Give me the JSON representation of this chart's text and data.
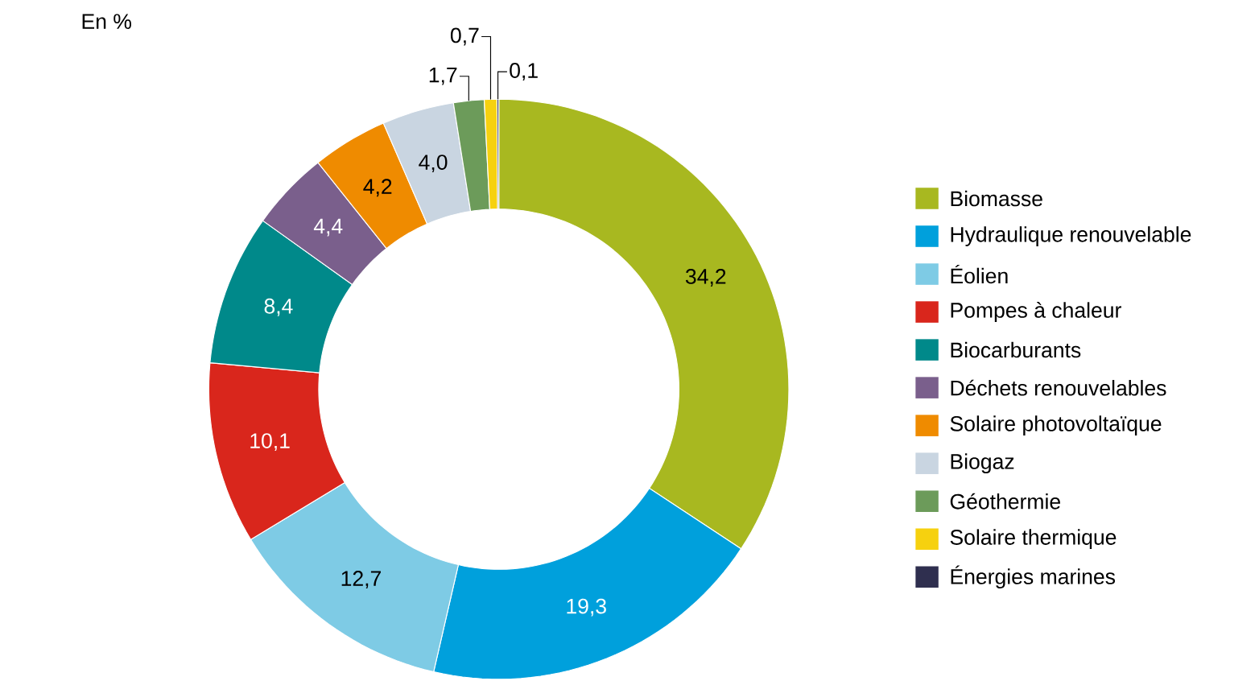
{
  "chart_data": {
    "type": "donut",
    "title": "En %",
    "categories": [
      "Biomasse",
      "Hydraulique renouvelable",
      "Éolien",
      "Pompes à chaleur",
      "Biocarburants",
      "Déchets renouvelables",
      "Solaire photovoltaïque",
      "Biogaz",
      "Géothermie",
      "Solaire thermique",
      "Énergies marines"
    ],
    "values": [
      34.2,
      19.3,
      12.7,
      10.1,
      8.4,
      4.4,
      4.2,
      4.0,
      1.7,
      0.7,
      0.1
    ],
    "value_labels": [
      "34,2",
      "19,3",
      "12,7",
      "10,1",
      "8,4",
      "4,4",
      "4,2",
      "4,0",
      "1,7",
      "0,7",
      "0,1"
    ],
    "colors": [
      "#a8b820",
      "#00a0dc",
      "#7ecbe5",
      "#d9261c",
      "#00898a",
      "#7a5f8c",
      "#ef8b00",
      "#c9d5e1",
      "#6c9b5a",
      "#f6d10f",
      "#2f2f4f"
    ],
    "legend": "right"
  }
}
